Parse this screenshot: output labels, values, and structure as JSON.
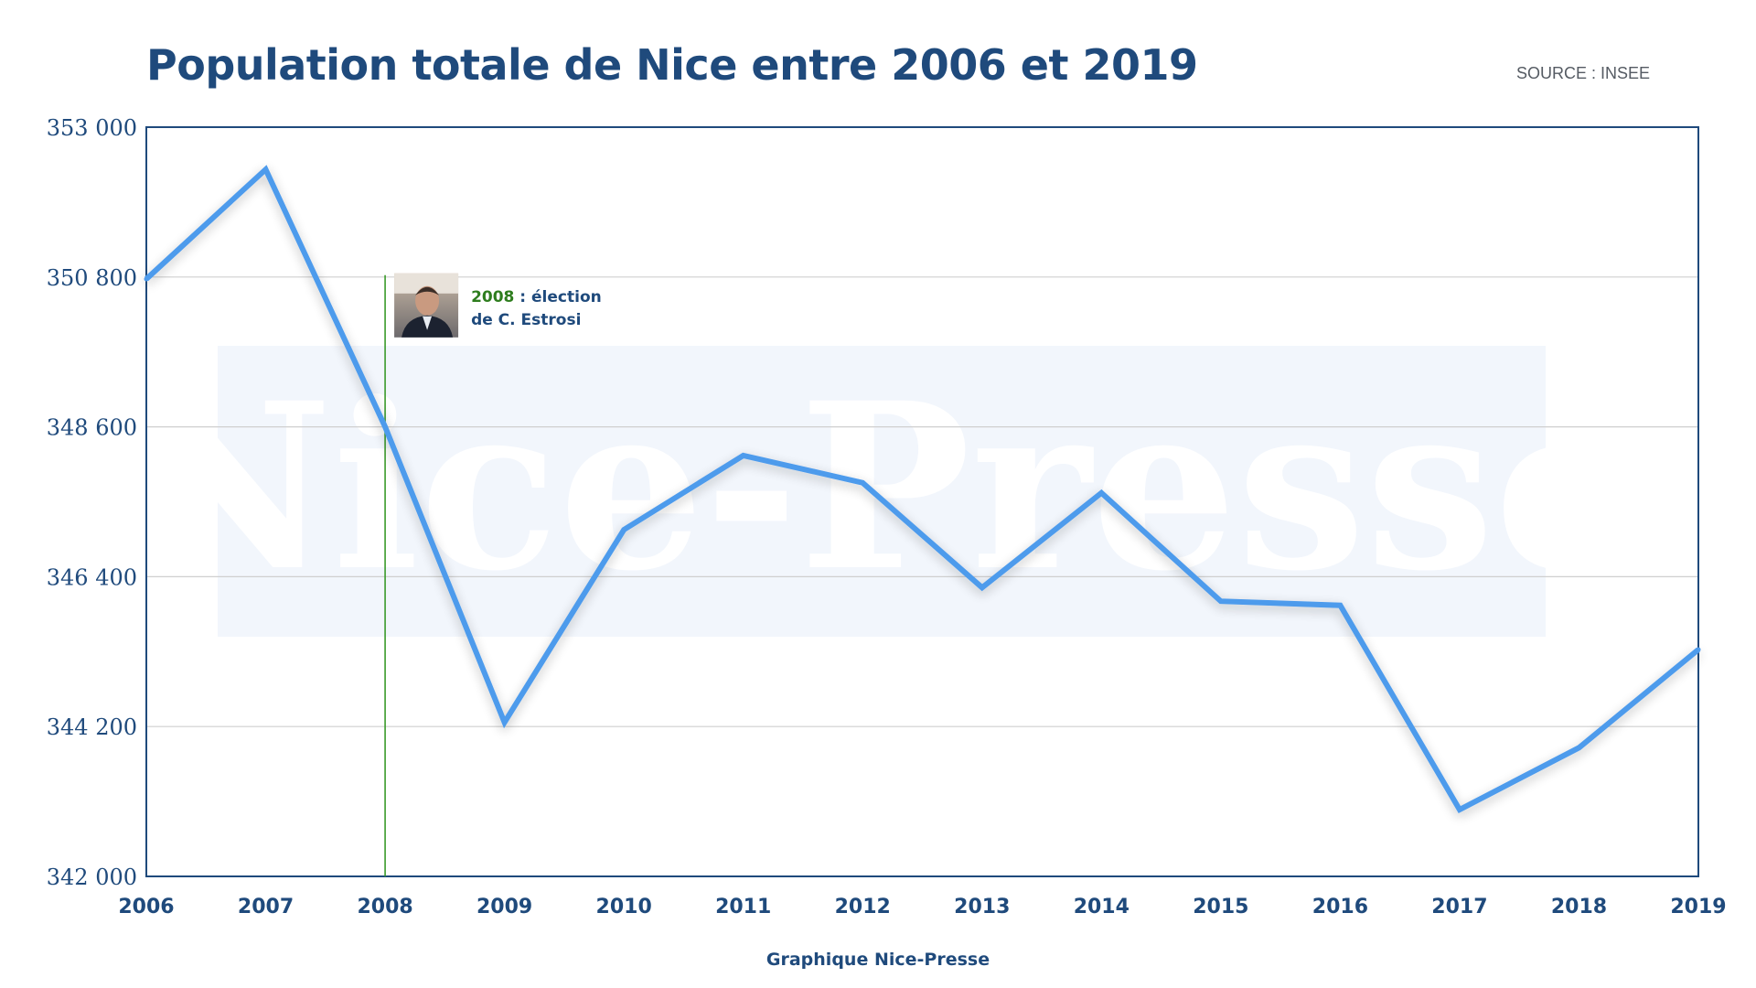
{
  "header": {
    "title": "Population totale de Nice entre 2006 et 2019",
    "source": "SOURCE : INSEE"
  },
  "footer": {
    "credit": "Graphique Nice-Presse"
  },
  "watermark": "Nice-Presse",
  "colors": {
    "line": "#4e9bec",
    "axis": "#1f4a7c",
    "grid": "#cfcfcf",
    "marker": "#3a9a2a",
    "watermark_bg": "#f2f6fc"
  },
  "annotation": {
    "year": "2008",
    "text_line1": " : élection",
    "text_line2": "de C. Estrosi",
    "x": 2008,
    "photo_icon": "portrait-photo"
  },
  "chart_data": {
    "type": "line",
    "title": "Population totale de Nice entre 2006 et 2019",
    "xlabel": "",
    "ylabel": "",
    "x": [
      2006,
      2007,
      2008,
      2009,
      2010,
      2011,
      2012,
      2013,
      2014,
      2015,
      2016,
      2017,
      2018,
      2019
    ],
    "series": [
      {
        "name": "",
        "values": [
          350770,
          352380,
          348600,
          344260,
          347090,
          348180,
          347780,
          346240,
          347630,
          346040,
          345980,
          342980,
          343890,
          345330
        ]
      }
    ],
    "ylim": [
      342000,
      353000
    ],
    "yticks": [
      342000,
      344200,
      346400,
      348600,
      350800,
      353000
    ],
    "ytick_labels": [
      "342 000",
      "344 200",
      "346 400",
      "348 600",
      "350 800",
      "353 000"
    ],
    "xtick_labels": [
      "2006",
      "2007",
      "2008",
      "2009",
      "2010",
      "2011",
      "2012",
      "2013",
      "2014",
      "2015",
      "2016",
      "2017",
      "2018",
      "2019"
    ],
    "grid": true,
    "legend": "none"
  }
}
